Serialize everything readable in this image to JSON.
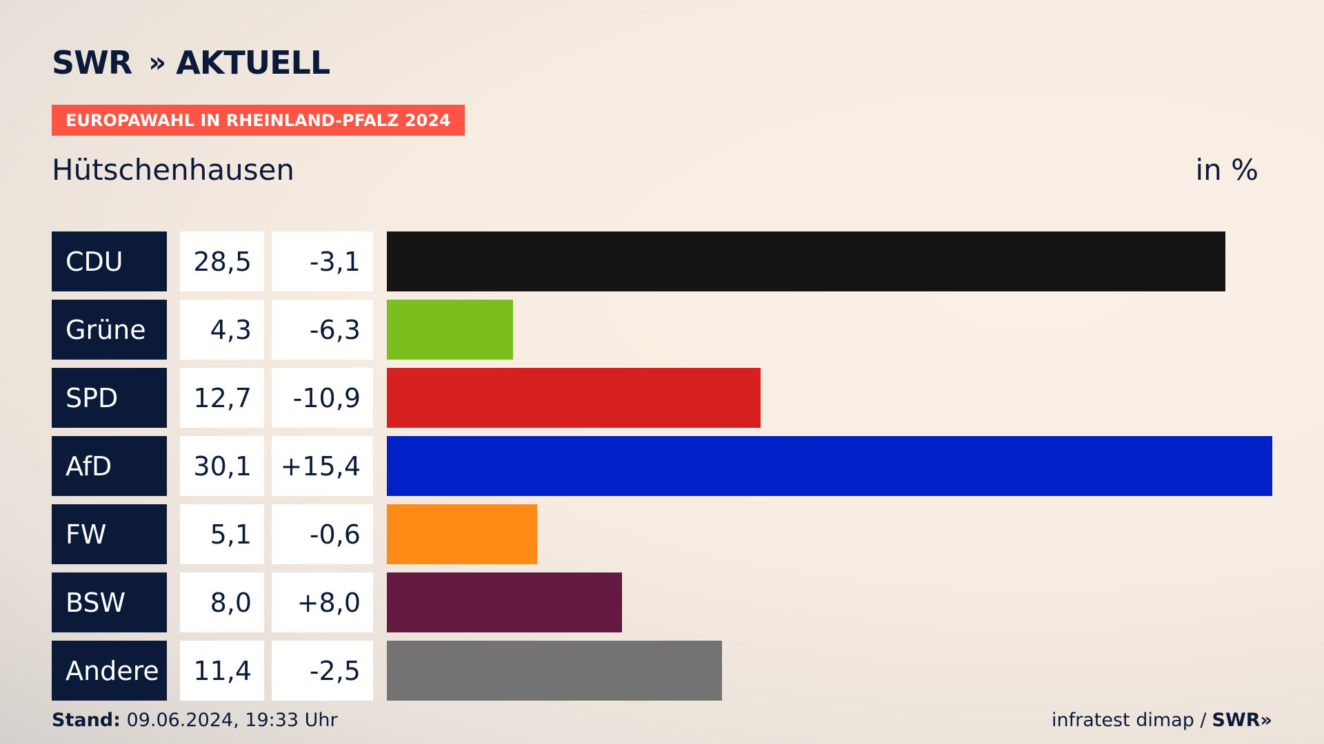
{
  "header": {
    "logo_text": "SWR",
    "logo_chevrons": "»",
    "logo_suffix": "AKTUELL",
    "tag": "EUROPAWAHL IN RHEINLAND-PFALZ 2024",
    "place": "Hütschenhausen",
    "unit": "in %"
  },
  "chart_data": {
    "type": "bar",
    "orientation": "horizontal",
    "categories": [
      "CDU",
      "Grüne",
      "SPD",
      "AfD",
      "FW",
      "BSW",
      "Andere"
    ],
    "values": [
      28.5,
      4.3,
      12.7,
      30.1,
      5.1,
      8.0,
      11.4
    ],
    "value_labels": [
      "28,5",
      "4,3",
      "12,7",
      "30,1",
      "5,1",
      "8,0",
      "11,4"
    ],
    "diff_labels": [
      "-3,1",
      "-6,3",
      "-10,9",
      "+15,4",
      "-0,6",
      "+8,0",
      "-2,5"
    ],
    "colors": [
      "#141414",
      "#7abf1e",
      "#d61f1f",
      "#0020c8",
      "#ff8b16",
      "#641a40",
      "#737373"
    ],
    "xlim": [
      0,
      30.1
    ],
    "grid": false,
    "legend": "none"
  },
  "footer": {
    "stand_label": "Stand:",
    "stand_value": "09.06.2024, 19:33 Uhr",
    "source": "infratest dimap /",
    "source_brand": "SWR»"
  }
}
